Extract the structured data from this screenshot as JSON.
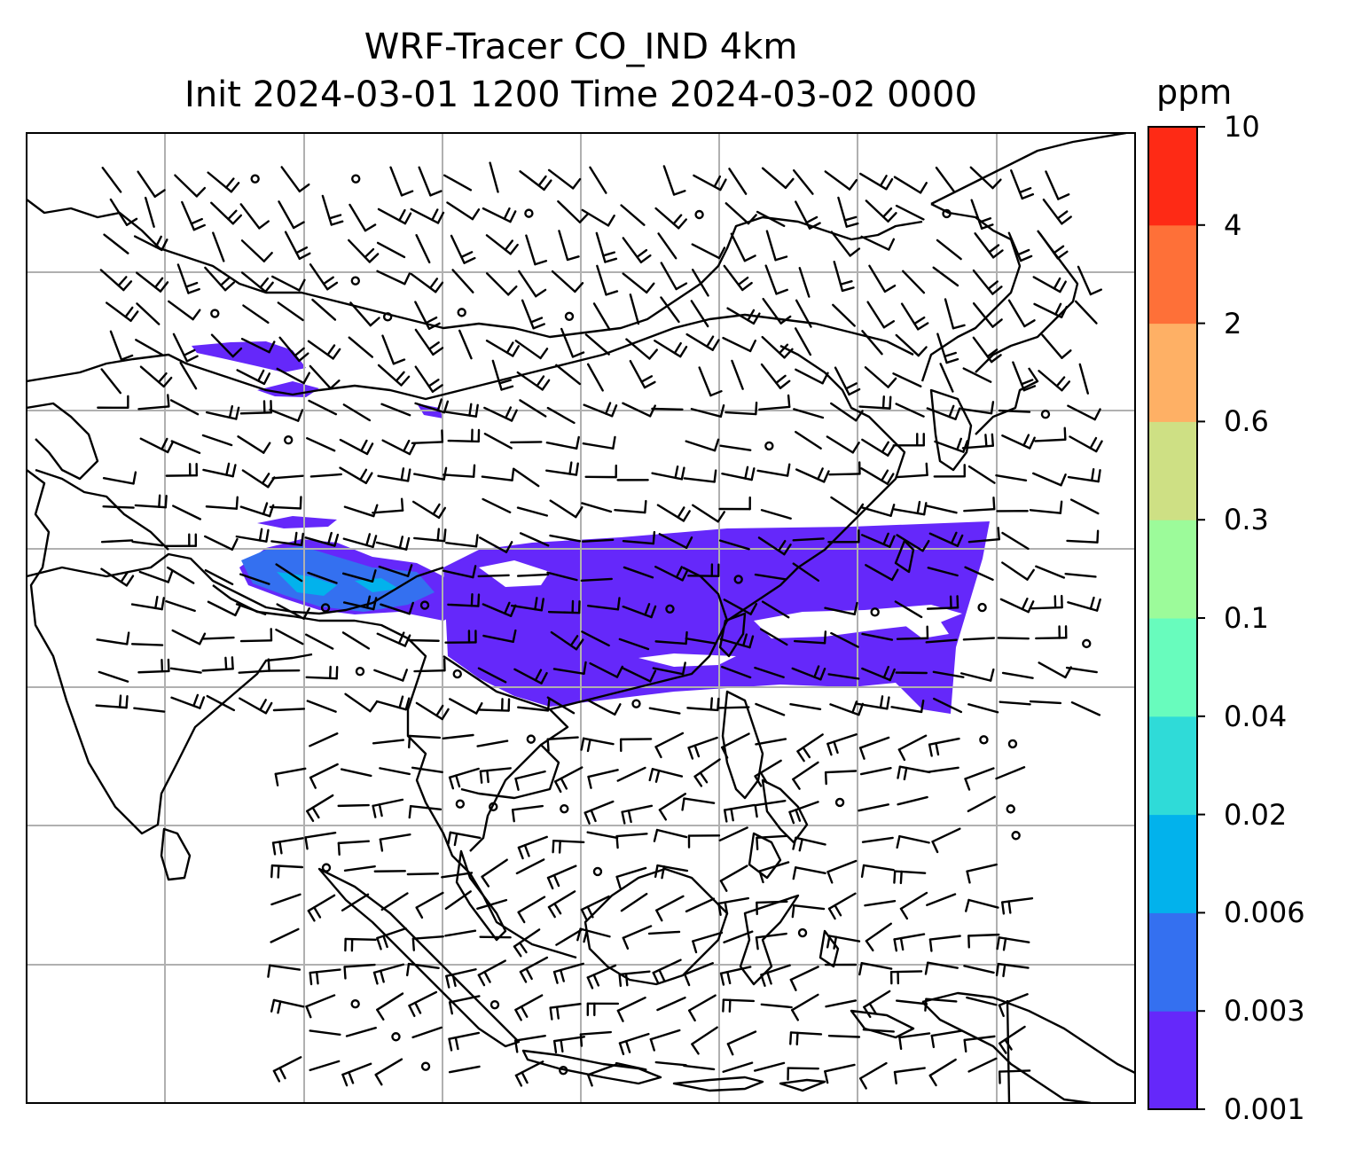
{
  "title": {
    "line1": "WRF-Tracer CO_IND 4km",
    "line2": "Init 2024-03-01 1200 Time 2024-03-02 0000"
  },
  "colorbar": {
    "unit": "ppm",
    "levels": [
      "0.001",
      "0.003",
      "0.006",
      "0.02",
      "0.04",
      "0.1",
      "0.3",
      "0.6",
      "2",
      "4",
      "10"
    ],
    "colors": [
      "#6528fa",
      "#3470f0",
      "#02b2ec",
      "#2fdbd8",
      "#68fcbd",
      "#9cfb9a",
      "#cee084",
      "#feb065",
      "#fe7038",
      "#fe2a15"
    ]
  },
  "map": {
    "coastline_color": "#000000",
    "gridline_color": "#b0b0b0",
    "tracer_main_color": "#6528fa",
    "tracer_mid_color": "#3470f0",
    "tracer_high_color": "#02b2ec"
  }
}
